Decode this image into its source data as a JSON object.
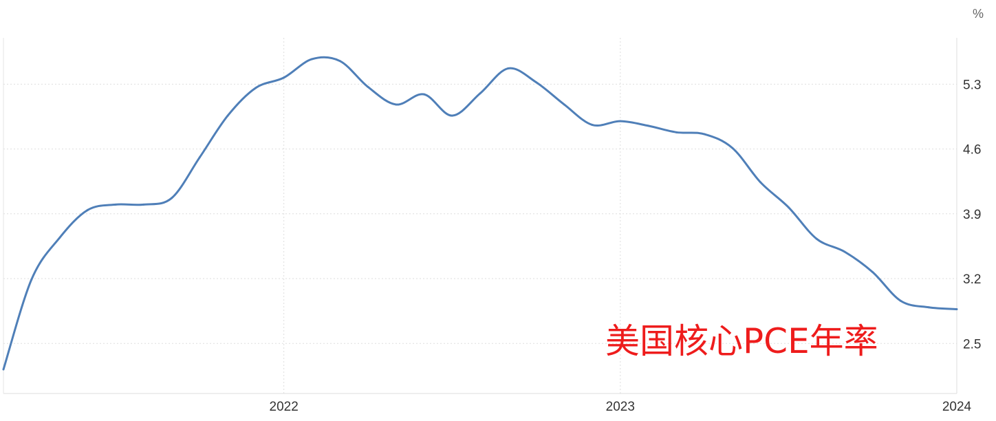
{
  "chart_data": {
    "type": "line",
    "title": "",
    "annotation": "美国核心PCE年率",
    "unit_label": "%",
    "xlabel": "",
    "ylabel": "",
    "x_ticks": [
      "2022",
      "2023",
      "2024"
    ],
    "y_ticks": [
      2.5,
      3.2,
      3.9,
      4.6,
      5.3
    ],
    "y_tick_labels": [
      "2.5",
      "3.2",
      "3.9",
      "4.6",
      "5.3"
    ],
    "ylim": [
      1.96,
      5.8
    ],
    "xlim": [
      "2021-03",
      "2024-01"
    ],
    "y_axis_position": "right",
    "grid": true,
    "colors": {
      "line": "#4f7fb8",
      "annotation": "#ee1c1c",
      "grid": "#dddddd"
    },
    "series": [
      {
        "x": [
          "2021-03",
          "2021-04",
          "2021-05",
          "2021-06",
          "2021-07",
          "2021-08",
          "2021-09",
          "2021-10",
          "2021-11",
          "2021-12",
          "2022-01",
          "2022-02",
          "2022-03",
          "2022-04",
          "2022-05",
          "2022-06",
          "2022-07",
          "2022-08",
          "2022-09",
          "2022-10",
          "2022-11",
          "2022-12",
          "2023-01",
          "2023-02",
          "2023-03",
          "2023-04",
          "2023-05",
          "2023-06",
          "2023-07",
          "2023-08",
          "2023-09",
          "2023-10",
          "2023-11",
          "2023-12",
          "2024-01"
        ],
        "values": [
          2.22,
          3.19,
          3.64,
          3.94,
          4.0,
          4.0,
          4.07,
          4.51,
          4.96,
          5.26,
          5.37,
          5.57,
          5.55,
          5.27,
          5.08,
          5.19,
          4.96,
          5.2,
          5.47,
          5.32,
          5.08,
          4.86,
          4.9,
          4.85,
          4.78,
          4.76,
          4.61,
          4.24,
          3.97,
          3.63,
          3.49,
          3.27,
          2.96,
          2.89,
          2.87
        ]
      }
    ]
  }
}
